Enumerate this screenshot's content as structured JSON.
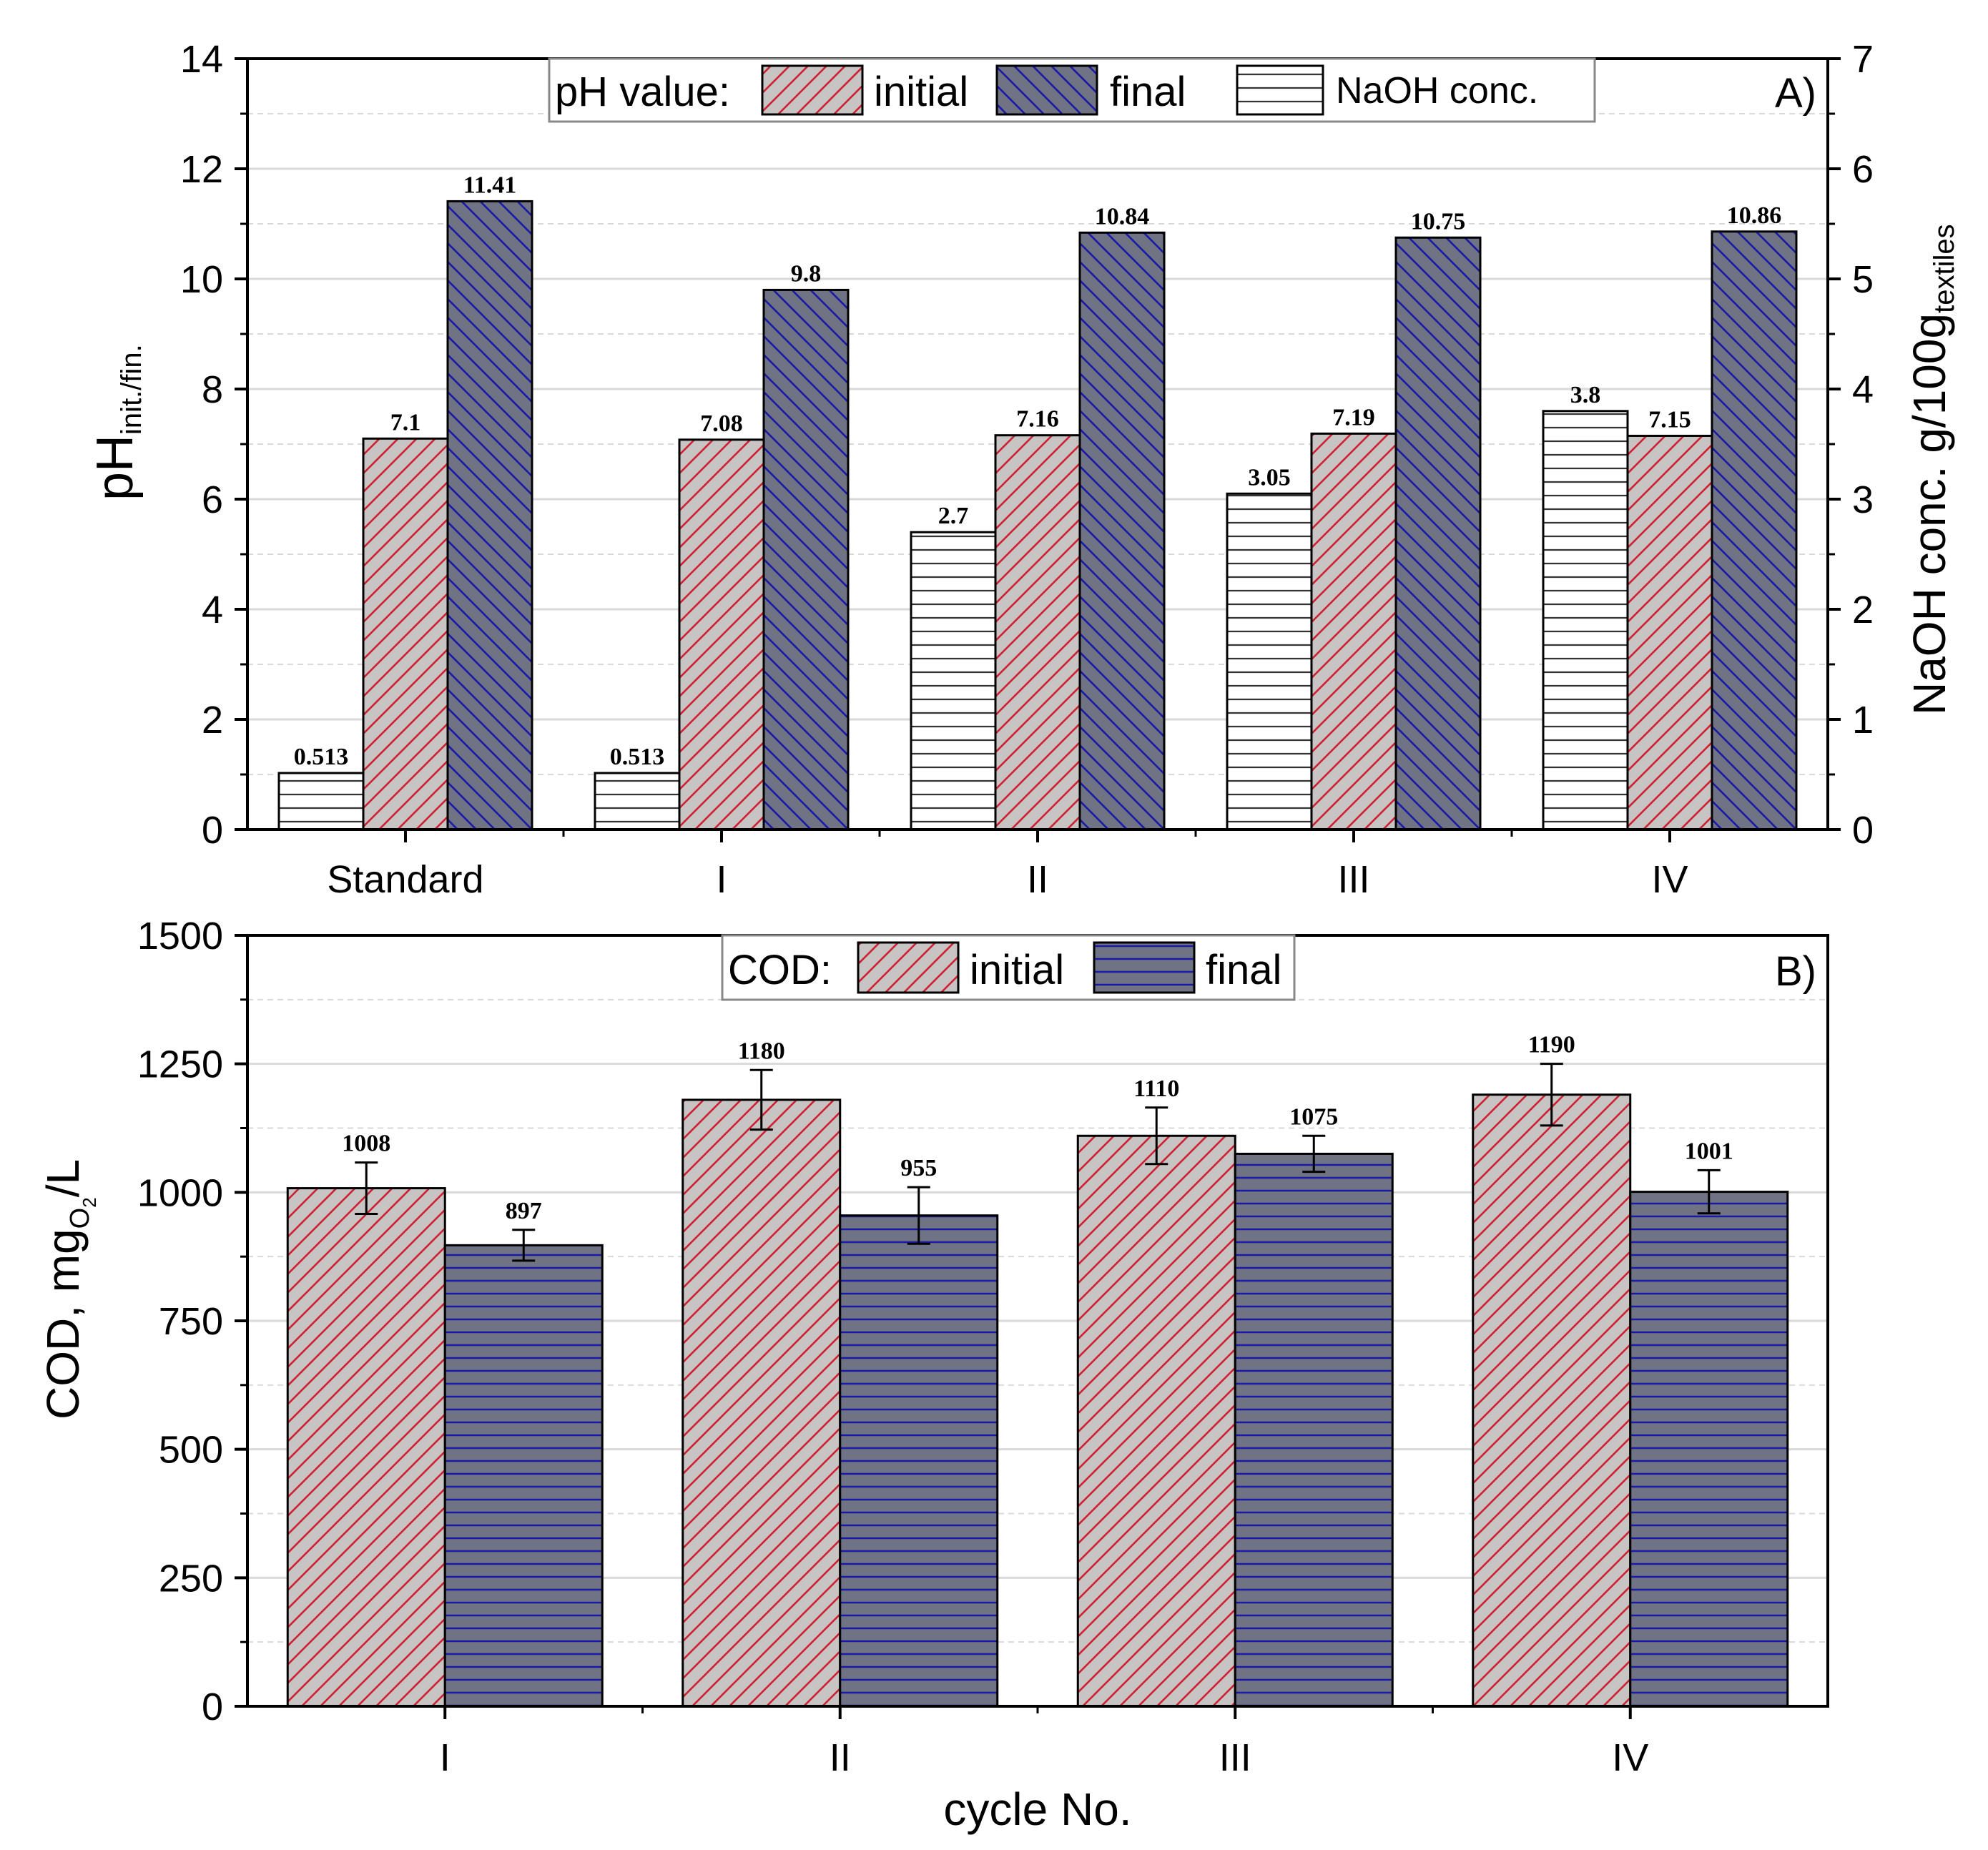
{
  "chart_data": [
    {
      "panel": "A)",
      "type": "bar",
      "categories": [
        "Standard",
        "I",
        "II",
        "III",
        "IV"
      ],
      "ylabel": "pH",
      "ylabel_sub": "init./fin.",
      "y2label": "NaOH conc. g/100g",
      "y2label_sub": "textiles",
      "ylim": [
        0,
        14
      ],
      "y2lim": [
        0,
        7
      ],
      "yticks": [
        0,
        2,
        4,
        6,
        8,
        10,
        12,
        14
      ],
      "y2ticks": [
        0,
        1,
        2,
        3,
        4,
        5,
        6,
        7
      ],
      "legend": {
        "title": "pH value:",
        "entries": [
          "initial",
          "final",
          "NaOH conc."
        ],
        "position": "top-center"
      },
      "series": [
        {
          "name": "NaOH conc.",
          "axis": "right",
          "values": [
            0.513,
            0.513,
            2.7,
            3.05,
            3.8
          ],
          "labels": [
            "0.513",
            "0.513",
            "2.7",
            "3.05",
            "3.8"
          ]
        },
        {
          "name": "initial",
          "axis": "left",
          "values": [
            7.1,
            7.08,
            7.16,
            7.19,
            7.15
          ],
          "labels": [
            "7.1",
            "7.08",
            "7.16",
            "7.19",
            "7.15"
          ]
        },
        {
          "name": "final",
          "axis": "left",
          "values": [
            11.41,
            9.8,
            10.84,
            10.75,
            10.86
          ],
          "labels": [
            "11.41",
            "9.8",
            "10.84",
            "10.75",
            "10.86"
          ]
        }
      ],
      "grid": true
    },
    {
      "panel": "B)",
      "type": "bar",
      "categories": [
        "I",
        "II",
        "III",
        "IV"
      ],
      "xlabel": "cycle No.",
      "ylabel_parts": [
        "COD, mg",
        "O",
        "2",
        "/L"
      ],
      "ylim": [
        0,
        1500
      ],
      "yticks": [
        0,
        250,
        500,
        750,
        1000,
        1250,
        1500
      ],
      "legend": {
        "title": "COD:",
        "entries": [
          "initial",
          "final"
        ],
        "position": "top-center"
      },
      "series": [
        {
          "name": "initial",
          "values": [
            1008,
            1180,
            1110,
            1190
          ],
          "errors": [
            50,
            58,
            55,
            60
          ],
          "labels": [
            "1008",
            "1180",
            "1110",
            "1190"
          ]
        },
        {
          "name": "final",
          "values": [
            897,
            955,
            1075,
            1001
          ],
          "errors": [
            30,
            55,
            35,
            42
          ],
          "labels": [
            "897",
            "955",
            "1075",
            "1001"
          ]
        }
      ],
      "grid": true
    }
  ],
  "colors": {
    "initial_fill": "#c9c4c4",
    "initial_hatch": "#cc2233",
    "final_fill": "#6f7383",
    "final_hatch": "#1a1aa8",
    "naoh_fill": "#ffffff",
    "naoh_hatch": "#333333",
    "grid": "#d9d9d9"
  }
}
